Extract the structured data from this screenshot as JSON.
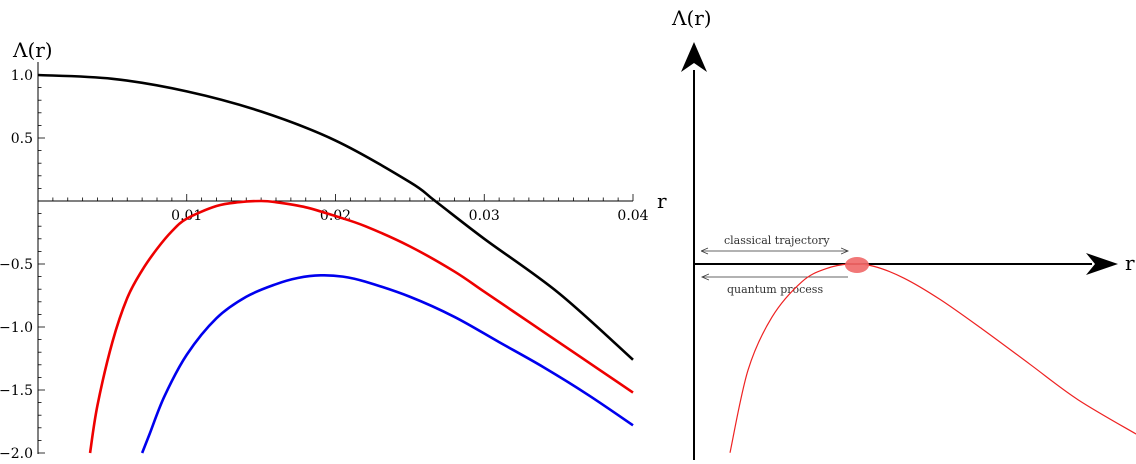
{
  "chart_data": [
    {
      "type": "line",
      "ylabel": "Λ(r)",
      "xlabel": "r",
      "xlim": [
        0,
        0.04
      ],
      "ylim": [
        -2.0,
        1.0
      ],
      "xticks": [
        "0.01",
        "0.02",
        "0.03",
        "0.04"
      ],
      "yticks": [
        "1.0",
        "0.5",
        "−0.5",
        "−1.0",
        "−1.5",
        "−2.0"
      ],
      "series": [
        {
          "color": "#000000",
          "x": [
            0,
            0.005,
            0.01,
            0.015,
            0.02,
            0.025,
            0.0267,
            0.03,
            0.035,
            0.04
          ],
          "y": [
            1.0,
            0.97,
            0.87,
            0.71,
            0.48,
            0.15,
            0.0,
            -0.3,
            -0.73,
            -1.26
          ]
        },
        {
          "color": "#ee0000",
          "x": [
            0.0035,
            0.004,
            0.005,
            0.006,
            0.007,
            0.008,
            0.009,
            0.01,
            0.012,
            0.0135,
            0.015,
            0.016,
            0.018,
            0.02,
            0.022,
            0.025,
            0.028,
            0.03,
            0.033,
            0.036,
            0.04
          ],
          "y": [
            -2.0,
            -1.62,
            -1.12,
            -0.77,
            -0.55,
            -0.38,
            -0.24,
            -0.14,
            -0.04,
            -0.01,
            0.0,
            -0.01,
            -0.05,
            -0.12,
            -0.2,
            -0.36,
            -0.56,
            -0.72,
            -0.96,
            -1.2,
            -1.52
          ]
        },
        {
          "color": "#0000ee",
          "x": [
            0.007,
            0.0075,
            0.0085,
            0.01,
            0.012,
            0.014,
            0.016,
            0.0175,
            0.019,
            0.0205,
            0.022,
            0.025,
            0.028,
            0.031,
            0.034,
            0.037,
            0.04
          ],
          "y": [
            -2.0,
            -1.85,
            -1.55,
            -1.22,
            -0.93,
            -0.76,
            -0.66,
            -0.61,
            -0.59,
            -0.6,
            -0.64,
            -0.76,
            -0.92,
            -1.12,
            -1.32,
            -1.54,
            -1.78
          ]
        }
      ]
    },
    {
      "type": "line",
      "ylabel": "Λ(r)",
      "xlabel": "r",
      "annotations": [
        "classical trajectory",
        "quantum process"
      ],
      "highlight_color": "#f06868",
      "series": [
        {
          "color": "#ee2222",
          "x": [
            0.3,
            0.45,
            0.65,
            0.9,
            1.1,
            1.3,
            1.5,
            1.75,
            2.05,
            2.4,
            2.8,
            3.2,
            3.7
          ],
          "y": [
            -1.6,
            -0.9,
            -0.45,
            -0.15,
            -0.04,
            0.0,
            -0.02,
            -0.12,
            -0.3,
            -0.55,
            -0.85,
            -1.15,
            -1.45
          ]
        }
      ]
    }
  ]
}
